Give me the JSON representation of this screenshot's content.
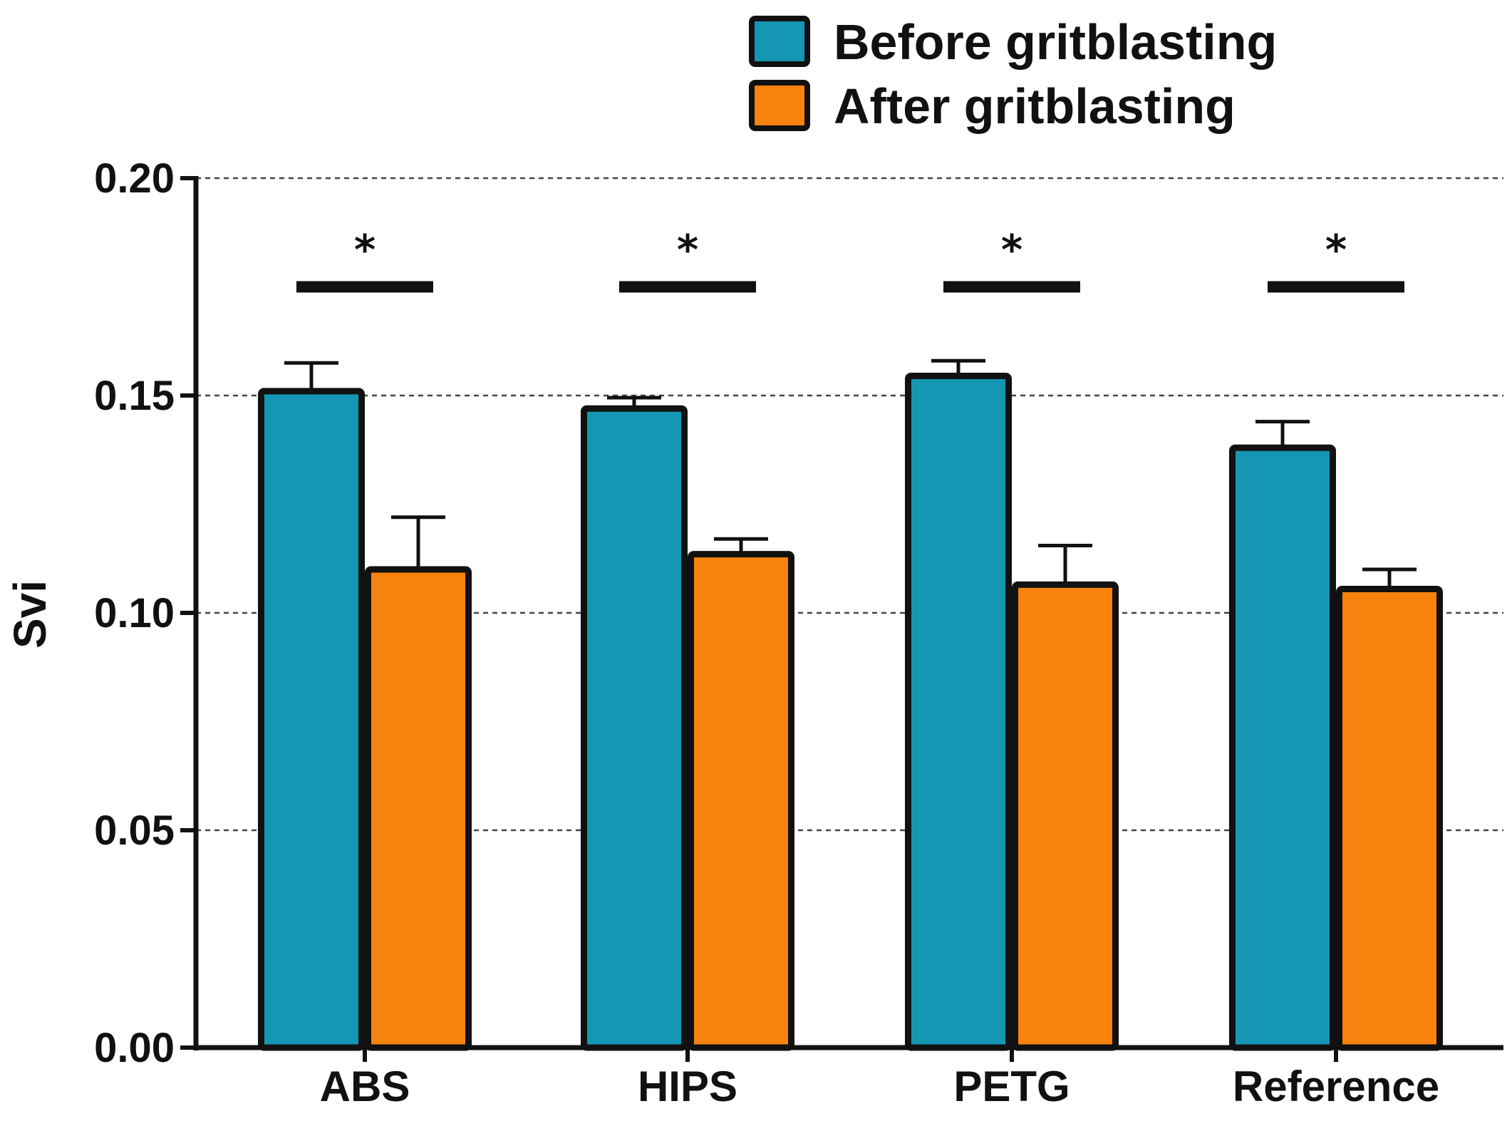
{
  "chart_data": {
    "type": "bar",
    "title": "",
    "xlabel": "",
    "ylabel": "Svi",
    "ylim": [
      0,
      0.2
    ],
    "yticks": [
      "0.00",
      "0.05",
      "0.10",
      "0.15",
      "0.20"
    ],
    "ytick_values": [
      0,
      0.05,
      0.1,
      0.15,
      0.2
    ],
    "grid": "dashed horizontal",
    "legend_position": "top-right",
    "categories": [
      "ABS",
      "HIPS",
      "PETG",
      "Reference"
    ],
    "series": [
      {
        "name": "Before gritblasting",
        "color": "#1597b3",
        "values": [
          0.151,
          0.147,
          0.1545,
          0.138
        ],
        "errors": [
          0.0065,
          0.0025,
          0.0035,
          0.006
        ]
      },
      {
        "name": "After gritblasting",
        "color": "#f7820d",
        "values": [
          0.11,
          0.1135,
          0.1065,
          0.1055
        ],
        "errors": [
          0.012,
          0.0035,
          0.009,
          0.0045
        ]
      }
    ],
    "significance": [
      {
        "category": "ABS",
        "label": "*",
        "level": 0.175
      },
      {
        "category": "HIPS",
        "label": "*",
        "level": 0.175
      },
      {
        "category": "PETG",
        "label": "*",
        "level": 0.175
      },
      {
        "category": "Reference",
        "label": "*",
        "level": 0.175
      }
    ]
  }
}
